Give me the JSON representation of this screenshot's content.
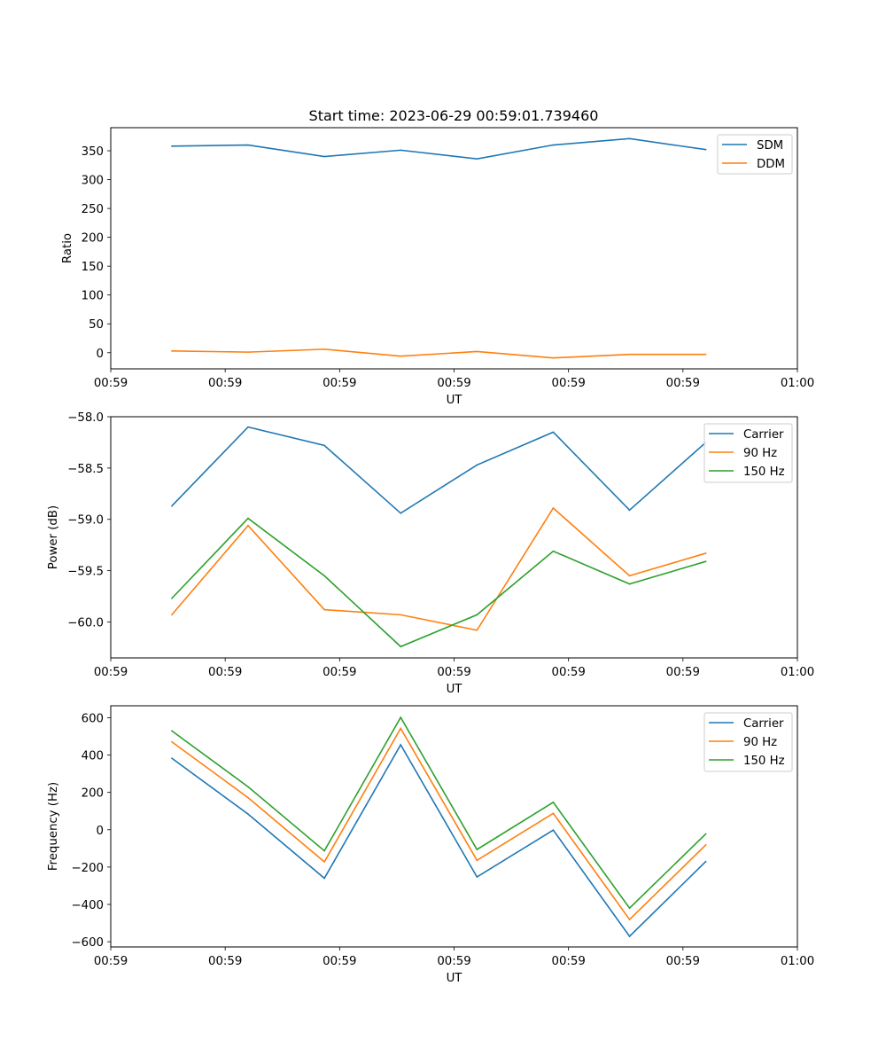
{
  "figure_title": "Start time: 2023-06-29 00:59:01.739460",
  "colors": {
    "blue": "#1f77b4",
    "orange": "#ff7f0e",
    "green": "#2ca02c"
  },
  "chart_data": [
    {
      "type": "line",
      "title": "Start time: 2023-06-29 00:59:01.739460",
      "xlabel": "UT",
      "ylabel": "Ratio",
      "x": [
        1,
        2,
        3,
        4,
        5,
        6,
        7,
        8
      ],
      "xlim": [
        0.2,
        9.2
      ],
      "x_ticks": [
        0.2,
        1.7,
        3.2,
        4.7,
        6.2,
        7.7,
        9.2
      ],
      "x_tick_labels": [
        "00:59",
        "00:59",
        "00:59",
        "00:59",
        "00:59",
        "00:59",
        "01:00"
      ],
      "ylim": [
        -28,
        390
      ],
      "y_ticks": [
        0,
        50,
        100,
        150,
        200,
        250,
        300,
        350
      ],
      "y_tick_labels": [
        "0",
        "50",
        "100",
        "150",
        "200",
        "250",
        "300",
        "350"
      ],
      "legend_position": "top-right",
      "series": [
        {
          "name": "SDM",
          "color": "#1f77b4",
          "values": [
            358,
            360,
            340,
            351,
            336,
            360,
            371,
            352
          ]
        },
        {
          "name": "DDM",
          "color": "#ff7f0e",
          "values": [
            3,
            1,
            6,
            -6,
            2,
            -9,
            -3,
            -3
          ]
        }
      ]
    },
    {
      "type": "line",
      "title": "",
      "xlabel": "UT",
      "ylabel": "Power (dB)",
      "x": [
        1,
        2,
        3,
        4,
        5,
        6,
        7,
        8
      ],
      "xlim": [
        0.2,
        9.2
      ],
      "x_ticks": [
        0.2,
        1.7,
        3.2,
        4.7,
        6.2,
        7.7,
        9.2
      ],
      "x_tick_labels": [
        "00:59",
        "00:59",
        "00:59",
        "00:59",
        "00:59",
        "00:59",
        "01:00"
      ],
      "ylim": [
        -60.35,
        -58.0
      ],
      "y_ticks": [
        -58.0,
        -58.5,
        -59.0,
        -59.5,
        -60.0
      ],
      "y_tick_labels": [
        "−58.0",
        "−58.5",
        "−59.0",
        "−59.5",
        "−60.0"
      ],
      "legend_position": "top-right",
      "series": [
        {
          "name": "Carrier",
          "color": "#1f77b4",
          "values": [
            -58.87,
            -58.1,
            -58.28,
            -58.94,
            -58.47,
            -58.15,
            -58.91,
            -58.25
          ]
        },
        {
          "name": "90 Hz",
          "color": "#ff7f0e",
          "values": [
            -59.93,
            -59.06,
            -59.88,
            -59.93,
            -60.08,
            -58.89,
            -59.55,
            -59.33
          ]
        },
        {
          "name": "150 Hz",
          "color": "#2ca02c",
          "values": [
            -59.77,
            -58.99,
            -59.55,
            -60.24,
            -59.93,
            -59.31,
            -59.63,
            -59.41
          ]
        }
      ]
    },
    {
      "type": "line",
      "title": "",
      "xlabel": "UT",
      "ylabel": "Frequency (Hz)",
      "x": [
        1,
        2,
        3,
        4,
        5,
        6,
        7,
        8
      ],
      "xlim": [
        0.2,
        9.2
      ],
      "x_ticks": [
        0.2,
        1.7,
        3.2,
        4.7,
        6.2,
        7.7,
        9.2
      ],
      "x_tick_labels": [
        "00:59",
        "00:59",
        "00:59",
        "00:59",
        "00:59",
        "00:59",
        "01:00"
      ],
      "ylim": [
        -628,
        664
      ],
      "y_ticks": [
        600,
        400,
        200,
        0,
        -200,
        -400,
        -600
      ],
      "y_tick_labels": [
        "600",
        "400",
        "200",
        "0",
        "−200",
        "−400",
        "−600"
      ],
      "legend_position": "top-right",
      "series": [
        {
          "name": "Carrier",
          "color": "#1f77b4",
          "values": [
            383,
            84,
            -260,
            455,
            -253,
            -2,
            -571,
            -170
          ]
        },
        {
          "name": "90 Hz",
          "color": "#ff7f0e",
          "values": [
            471,
            172,
            -172,
            543,
            -164,
            88,
            -481,
            -81
          ]
        },
        {
          "name": "150 Hz",
          "color": "#2ca02c",
          "values": [
            530,
            230,
            -113,
            602,
            -106,
            147,
            -420,
            -22
          ]
        }
      ]
    }
  ]
}
